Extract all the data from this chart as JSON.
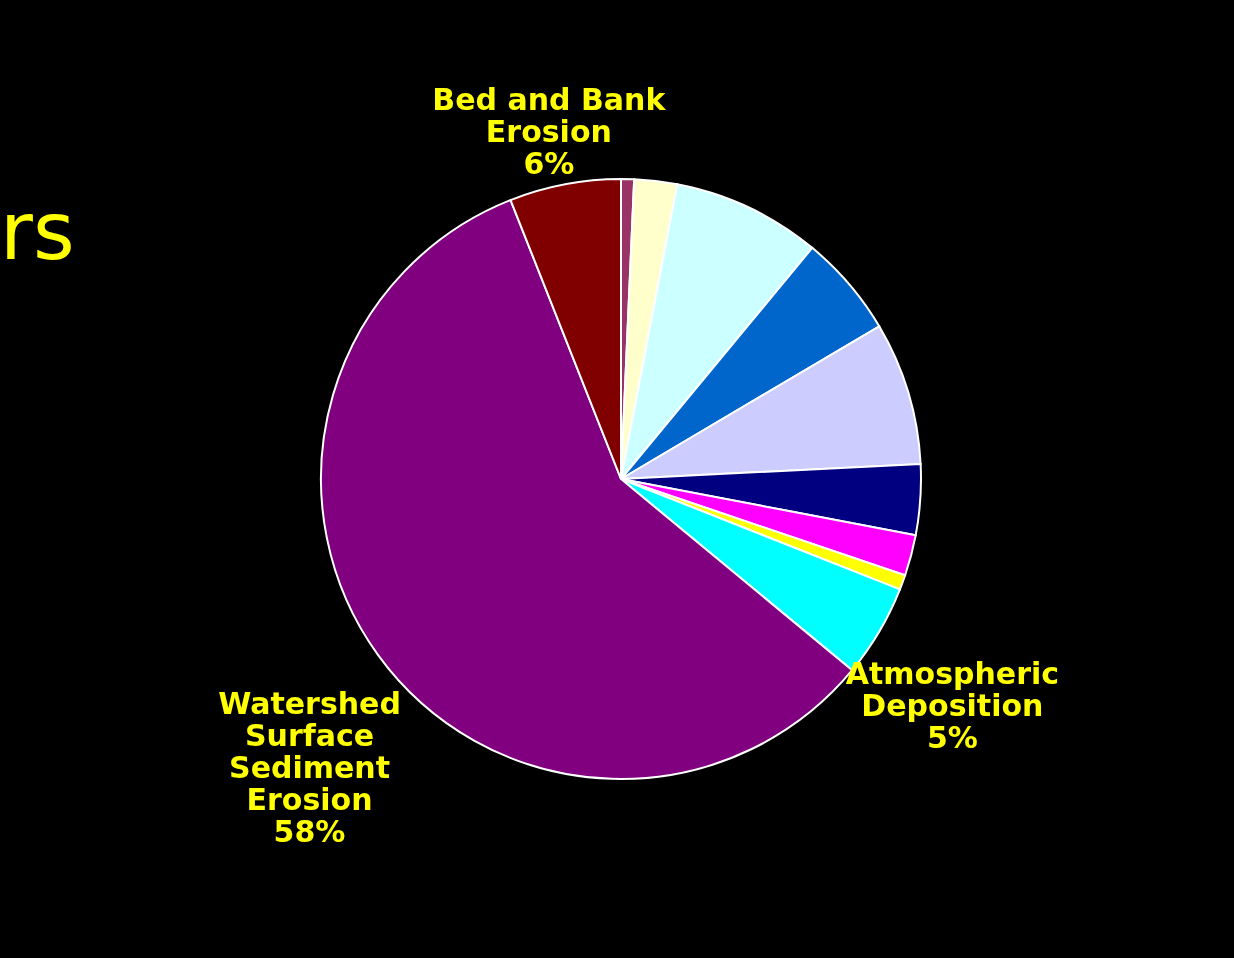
{
  "chart_data": {
    "type": "pie",
    "title": "rs",
    "categories": [
      null,
      null,
      null,
      null,
      null,
      null,
      null,
      null,
      "Atmospheric Deposition",
      "Watershed Surface Sediment Erosion",
      "Bed and Bank Erosion"
    ],
    "values": [
      0.7,
      2.3,
      8,
      5.5,
      7.7,
      3.8,
      2.2,
      0.8,
      5,
      58,
      6
    ],
    "colors": [
      "#993366",
      "#ffffcc",
      "#ccffff",
      "#0066cc",
      "#ccccff",
      "#000080",
      "#ff00ff",
      "#ffff00",
      "#00ffff",
      "#800080",
      "#800000"
    ],
    "value_labels": [
      null,
      null,
      null,
      null,
      null,
      null,
      null,
      null,
      "5%",
      "58%",
      "6%"
    ],
    "legend": false
  }
}
